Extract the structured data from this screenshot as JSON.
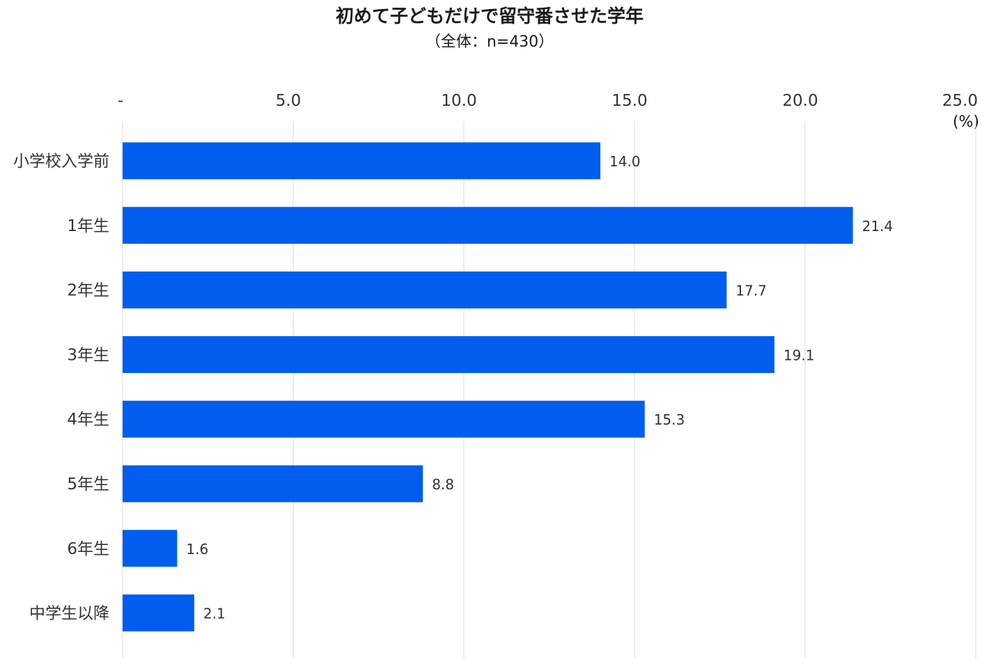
{
  "chart_data": {
    "type": "bar",
    "orientation": "horizontal",
    "title": "初めて子どもだけで留守番させた学年",
    "subtitle": "（全体：n=430）",
    "unit": "(%)",
    "categories": [
      "小学校入学前",
      "1年生",
      "2年生",
      "3年生",
      "4年生",
      "5年生",
      "6年生",
      "中学生以降"
    ],
    "values": [
      14.0,
      21.4,
      17.7,
      19.1,
      15.3,
      8.8,
      1.6,
      2.1
    ],
    "value_labels": [
      "14.0",
      "21.4",
      "17.7",
      "19.1",
      "15.3",
      "8.8",
      "1.6",
      "2.1"
    ],
    "xlim": [
      0,
      25
    ],
    "ticks": [
      0,
      5,
      10,
      15,
      20,
      25
    ],
    "tick_labels": [
      "-",
      "5.0",
      "10.0",
      "15.0",
      "20.0",
      "25.0"
    ],
    "axis_position": "top",
    "grid": true,
    "legend": "none",
    "bar_color": "#005ded",
    "grid_color": "#d9d9d9"
  }
}
